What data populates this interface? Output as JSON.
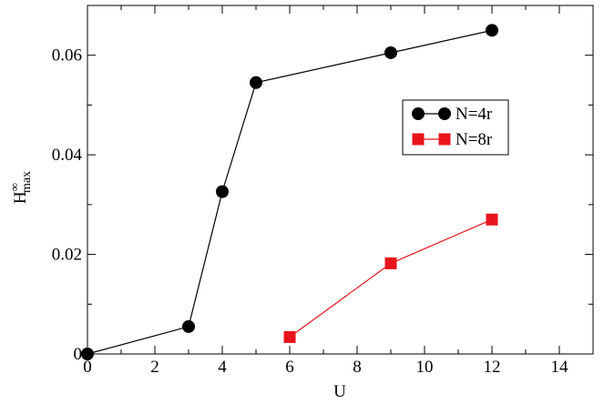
{
  "chart_data": {
    "type": "line",
    "title": "",
    "xlabel": "U",
    "ylabel": {
      "base": "H",
      "superscript": "∞",
      "subscript": "max"
    },
    "xlim": [
      0,
      15
    ],
    "ylim": [
      0,
      0.07
    ],
    "xticks": [
      0,
      2,
      4,
      6,
      8,
      10,
      12,
      14
    ],
    "xtick_labels": [
      "0",
      "2",
      "4",
      "6",
      "8",
      "10",
      "12",
      "14"
    ],
    "yticks": [
      0,
      0.02,
      0.04,
      0.06
    ],
    "ytick_labels": [
      "0",
      "0.02",
      "0.04",
      "0.06"
    ],
    "grid": false,
    "legend_position": "upper-right",
    "series": [
      {
        "name": "N=4r",
        "marker": "circle",
        "color": "#000000",
        "x": [
          0,
          3,
          4,
          5,
          9,
          12
        ],
        "y": [
          0.0,
          0.0055,
          0.0326,
          0.0545,
          0.0605,
          0.065
        ]
      },
      {
        "name": "N=8r",
        "marker": "square",
        "color": "#e8141c",
        "x": [
          6,
          9,
          12
        ],
        "y": [
          0.0034,
          0.0182,
          0.027
        ]
      }
    ]
  }
}
